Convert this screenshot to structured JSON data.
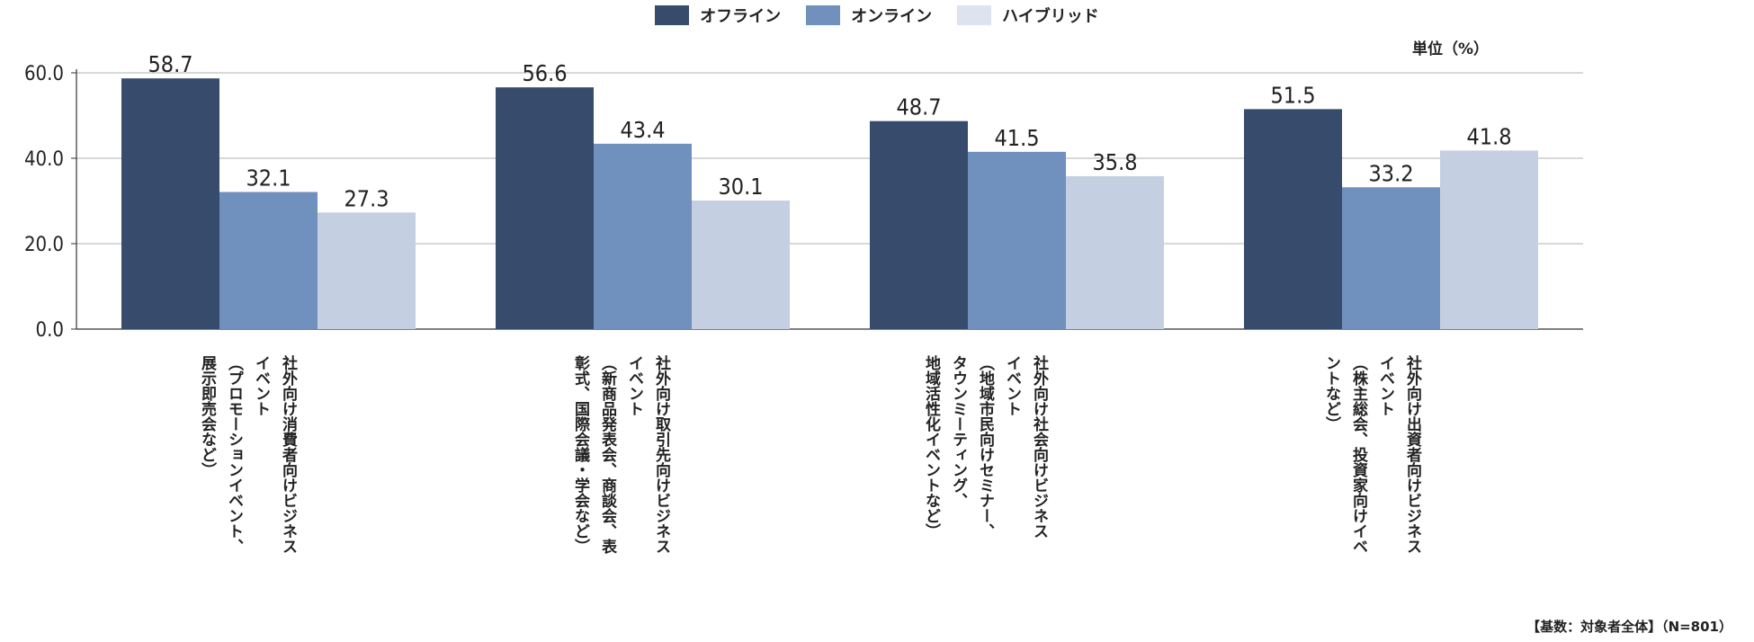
{
  "legend": {
    "offline": "オフライン",
    "online": "オンライン",
    "hybrid": "ハイブリッド"
  },
  "unit_label": "単位（%）",
  "footnote": "【基数：対象者全体】（N=801）",
  "colors": {
    "offline": "#374c6d",
    "online": "#7090bd",
    "hybrid": "#c4cfe1",
    "legend_hybrid": "#dde4ef",
    "grid": "#b0b0b0",
    "axis": "#333333"
  },
  "chart_data": {
    "type": "bar",
    "categories": [
      "社外向け消費者向けビジネスイベント（プロモーションイベント、展示即売会など）",
      "社外向け取引先向けビジネスイベント（新商品発表会、商談会、表彰式、国際会議・学会など）",
      "社外向け社会向けビジネスイベント（地域市民向けセミナー、タウンミーティング、地域活性化イベントなど）",
      "社外向け出資者向けビジネスイベント（株主総会、投資家向けイベントなど）"
    ],
    "category_lines": [
      [
        "社外向け消費者向けビジネス",
        "イベント",
        "（プロモーションイベント、",
        "展示即売会など）"
      ],
      [
        "社外向け取引先向けビジネス",
        "イベント",
        "（新商品発表会、商談会、表",
        "彰式、国際会議・学会など）"
      ],
      [
        "社外向け社会向けビジネス",
        "イベント",
        "（地域市民向けセミナー、",
        "タウンミーティング、",
        "地域活性化イベントなど）"
      ],
      [
        "社外向け出資者向けビジネス",
        "イベント",
        "（株主総会、投資家向けイベ",
        "ントなど）"
      ]
    ],
    "series": [
      {
        "name": "オフライン",
        "values": [
          58.7,
          56.6,
          48.7,
          51.5
        ]
      },
      {
        "name": "オンライン",
        "values": [
          32.1,
          43.4,
          41.5,
          33.2
        ]
      },
      {
        "name": "ハイブリッド",
        "values": [
          27.3,
          30.1,
          35.8,
          41.8
        ]
      }
    ],
    "value_labels": [
      [
        "58.7",
        "32.1",
        "27.3"
      ],
      [
        "56.6",
        "43.4",
        "30.1"
      ],
      [
        "48.7",
        "41.5",
        "35.8"
      ],
      [
        "51.5",
        "33.2",
        "41.8"
      ]
    ],
    "y_ticks": [
      "0.0",
      "20.0",
      "40.0",
      "60.0"
    ],
    "y_tick_values": [
      0,
      20,
      40,
      60
    ],
    "ylim": [
      0,
      60
    ],
    "grid": true,
    "legend_position": "top-center"
  }
}
